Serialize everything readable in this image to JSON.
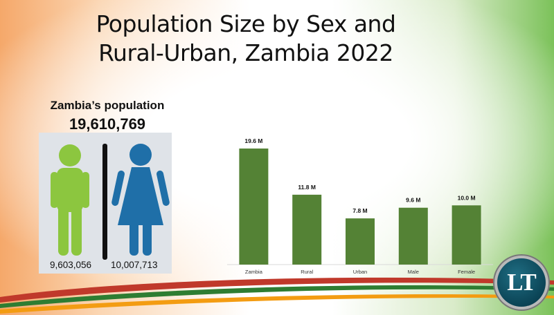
{
  "slide": {
    "title_line1": "Population Size by Sex and",
    "title_line2": "Rural-Urban, Zambia 2022"
  },
  "summary": {
    "label": "Zambia’s population",
    "total": "19,610,769",
    "male_count": "9,603,056",
    "female_count": "10,007,713",
    "male_color": "#8cc63f",
    "female_color": "#1f6fa8"
  },
  "chart_data": {
    "type": "bar",
    "categories": [
      "Zambia",
      "Rural",
      "Urban",
      "Male",
      "Female"
    ],
    "values": [
      19.6,
      11.8,
      7.8,
      9.6,
      10.0
    ],
    "data_labels": [
      "19.6  M",
      "11.8  M",
      "7.8  M",
      "9.6  M",
      "10.0  M"
    ],
    "bar_color": "#548235",
    "ylim": [
      0,
      19.6
    ],
    "grid": false
  },
  "logo": {
    "text": "LT",
    "bg_color": "#0b4456"
  },
  "decor": {
    "swoosh_colors": [
      "#c0392b",
      "#2e7d32",
      "#f39c12"
    ]
  }
}
